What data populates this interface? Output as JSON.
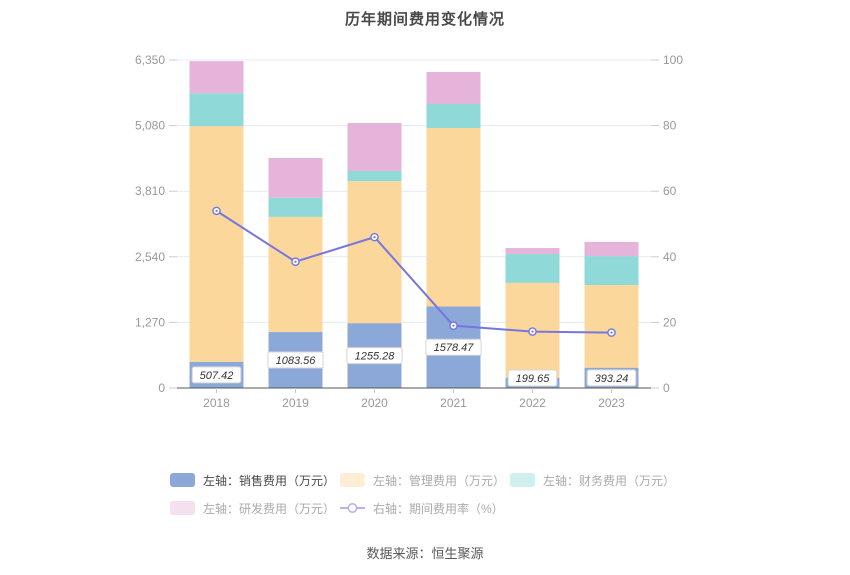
{
  "title": "历年期间费用变化情况",
  "source": "数据来源：恒生聚源",
  "chart_data": {
    "type": "bar",
    "stacked": true,
    "grid": true,
    "legend_position": "bottom",
    "categories": [
      "2018",
      "2019",
      "2020",
      "2021",
      "2022",
      "2023"
    ],
    "series": [
      {
        "name": "左轴：销售费用（万元）",
        "axis": "left",
        "color": "#8CA8D8",
        "values": [
          507.42,
          1083.56,
          1255.28,
          1578.47,
          199.65,
          393.24
        ]
      },
      {
        "name": "左轴：管理费用（万元）",
        "axis": "left",
        "color": "#FBD79B",
        "values": [
          4560,
          2230,
          2750,
          3455,
          1835,
          1600
        ]
      },
      {
        "name": "左轴：财务费用（万元）",
        "axis": "left",
        "color": "#8FD9D8",
        "values": [
          640,
          370,
          195,
          465,
          560,
          560
        ]
      },
      {
        "name": "左轴：研发费用（万元）",
        "axis": "left",
        "color": "#E6B4DB",
        "values": [
          620,
          770,
          930,
          619,
          115,
          274
        ]
      }
    ],
    "line_series": {
      "name": "右轴：期间费用率（%）",
      "axis": "right",
      "color": "#7477E0",
      "values": [
        54,
        38.5,
        46,
        19,
        17.2,
        16.9
      ]
    },
    "bar_labels": [
      "507.42",
      "1083.56",
      "1255.28",
      "1578.47",
      "199.65",
      "393.24"
    ],
    "left_axis": {
      "min": 0,
      "max": 6350,
      "ticks": [
        "0",
        "1,270",
        "2,540",
        "3,810",
        "5,080",
        "6,350"
      ]
    },
    "right_axis": {
      "min": 0,
      "max": 100,
      "ticks": [
        "0",
        "20",
        "40",
        "60",
        "80",
        "100"
      ]
    },
    "colors": {
      "grid": "#E4E9F4",
      "axis_line": "#555555",
      "tick": "#CCCCCC",
      "axis_label": "#999999",
      "bar_label_text": "#333333",
      "bar_label_border": "#D4D4D4",
      "bar_label_bg": "#FFFFFF"
    }
  }
}
